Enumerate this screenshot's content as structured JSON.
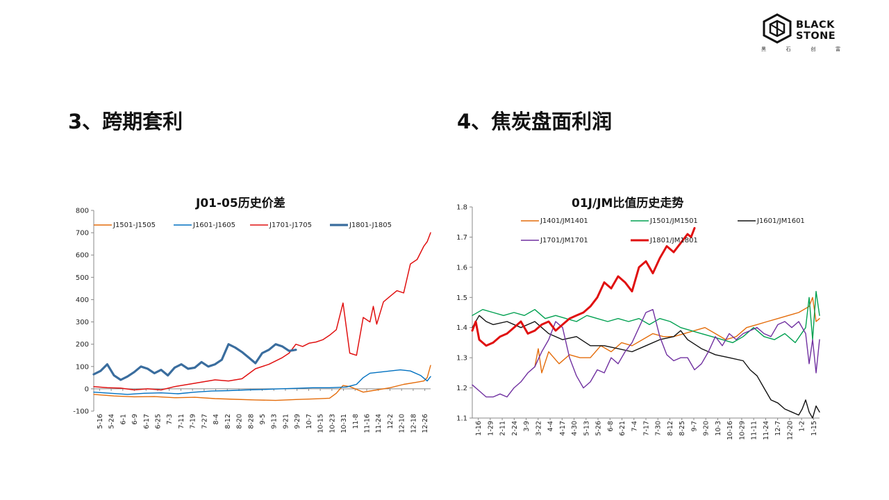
{
  "logo": {
    "line1": "BLACK",
    "line2": "STONE",
    "cn": [
      "黑",
      "石",
      "创",
      "富"
    ]
  },
  "sections": {
    "left": "3、跨期套利",
    "right": "4、焦炭盘面利润"
  },
  "chart_data": [
    {
      "type": "line",
      "title": "J01-05历史价差",
      "ylim": [
        -100,
        800
      ],
      "yticks": [
        -100,
        0,
        100,
        200,
        300,
        400,
        500,
        600,
        700,
        800
      ],
      "xlim": [
        0,
        1
      ],
      "categories": [
        "5-16",
        "5-24",
        "6-1",
        "6-9",
        "6-17",
        "6-25",
        "7-3",
        "7-11",
        "7-19",
        "7-27",
        "8-4",
        "8-12",
        "8-20",
        "8-28",
        "9-5",
        "9-13",
        "9-21",
        "9-29",
        "10-7",
        "10-15",
        "10-23",
        "10-31",
        "11-8",
        "11-16",
        "11-24",
        "12-2",
        "12-10",
        "12-18",
        "12-26"
      ],
      "legend_position": "top",
      "grid": false,
      "series": [
        {
          "name": "J1501-J1505",
          "color": "#E46C0A",
          "width": 1.4,
          "x": [
            0.0,
            0.06,
            0.12,
            0.18,
            0.24,
            0.3,
            0.36,
            0.42,
            0.48,
            0.54,
            0.6,
            0.66,
            0.7,
            0.72,
            0.74,
            0.76,
            0.8,
            0.84,
            0.88,
            0.92,
            0.96,
            0.98,
            0.99,
            1.0
          ],
          "values": [
            -25,
            -32,
            -36,
            -35,
            -40,
            -38,
            -44,
            -47,
            -50,
            -52,
            -48,
            -45,
            -42,
            -20,
            15,
            10,
            -15,
            -5,
            5,
            20,
            30,
            35,
            50,
            105
          ]
        },
        {
          "name": "J1601-J1605",
          "color": "#0070C0",
          "width": 1.4,
          "x": [
            0.0,
            0.05,
            0.1,
            0.15,
            0.2,
            0.25,
            0.3,
            0.35,
            0.4,
            0.45,
            0.5,
            0.55,
            0.6,
            0.65,
            0.7,
            0.75,
            0.78,
            0.8,
            0.82,
            0.85,
            0.88,
            0.91,
            0.94,
            0.97,
            0.99,
            1.0
          ],
          "values": [
            -15,
            -20,
            -25,
            -20,
            -18,
            -22,
            -15,
            -10,
            -8,
            -5,
            -3,
            0,
            2,
            5,
            5,
            8,
            20,
            50,
            70,
            75,
            80,
            85,
            80,
            60,
            35,
            55
          ]
        },
        {
          "name": "J1701-J1705",
          "color": "#E01010",
          "width": 1.5,
          "x": [
            0.0,
            0.04,
            0.08,
            0.12,
            0.16,
            0.2,
            0.24,
            0.28,
            0.32,
            0.36,
            0.4,
            0.44,
            0.48,
            0.52,
            0.56,
            0.58,
            0.6,
            0.62,
            0.64,
            0.66,
            0.68,
            0.7,
            0.72,
            0.74,
            0.76,
            0.78,
            0.8,
            0.82,
            0.83,
            0.84,
            0.86,
            0.88,
            0.9,
            0.92,
            0.94,
            0.96,
            0.98,
            0.99,
            1.0
          ],
          "values": [
            10,
            5,
            3,
            -5,
            0,
            -5,
            10,
            20,
            30,
            40,
            35,
            45,
            90,
            110,
            140,
            160,
            200,
            190,
            205,
            210,
            220,
            240,
            265,
            385,
            160,
            150,
            320,
            300,
            370,
            290,
            390,
            415,
            440,
            430,
            560,
            580,
            640,
            660,
            700
          ]
        },
        {
          "name": "J1801-J1805",
          "color": "#3A6D9E",
          "width": 3.2,
          "x": [
            0.0,
            0.02,
            0.04,
            0.06,
            0.08,
            0.1,
            0.12,
            0.14,
            0.16,
            0.18,
            0.2,
            0.22,
            0.24,
            0.26,
            0.28,
            0.3,
            0.32,
            0.34,
            0.36,
            0.38,
            0.4,
            0.42,
            0.44,
            0.46,
            0.48,
            0.5,
            0.52,
            0.54,
            0.56,
            0.58,
            0.6
          ],
          "values": [
            65,
            80,
            110,
            60,
            40,
            55,
            75,
            100,
            90,
            70,
            85,
            60,
            95,
            110,
            90,
            95,
            120,
            100,
            110,
            130,
            200,
            185,
            165,
            140,
            115,
            160,
            175,
            200,
            190,
            170,
            175
          ]
        }
      ]
    },
    {
      "type": "line",
      "title": "01J/JM比值历史走势",
      "ylim": [
        1.1,
        1.8
      ],
      "yticks": [
        1.1,
        1.2,
        1.3,
        1.4,
        1.5,
        1.6,
        1.7,
        1.8
      ],
      "xlim": [
        0,
        1
      ],
      "categories": [
        "1-16",
        "1-29",
        "2-11",
        "2-24",
        "3-9",
        "3-22",
        "4-4",
        "4-17",
        "4-30",
        "5-13",
        "5-26",
        "6-8",
        "6-21",
        "7-4",
        "7-17",
        "7-30",
        "8-12",
        "8-25",
        "9-7",
        "9-20",
        "10-3",
        "10-16",
        "10-29",
        "11-11",
        "11-24",
        "12-7",
        "12-20",
        "1-2",
        "1-15"
      ],
      "legend_position": "top",
      "grid": false,
      "series": [
        {
          "name": "J1401/JM1401",
          "color": "#E46C0A",
          "width": 1.4,
          "x": [
            0.18,
            0.19,
            0.2,
            0.22,
            0.25,
            0.28,
            0.31,
            0.34,
            0.37,
            0.4,
            0.43,
            0.46,
            0.49,
            0.52,
            0.55,
            0.58,
            0.61,
            0.64,
            0.67,
            0.7,
            0.73,
            0.76,
            0.79,
            0.82,
            0.85,
            0.88,
            0.91,
            0.94,
            0.97,
            0.98,
            0.99,
            1.0
          ],
          "values": [
            1.27,
            1.33,
            1.25,
            1.32,
            1.28,
            1.31,
            1.3,
            1.3,
            1.34,
            1.32,
            1.35,
            1.34,
            1.36,
            1.38,
            1.37,
            1.37,
            1.38,
            1.39,
            1.4,
            1.38,
            1.36,
            1.37,
            1.4,
            1.41,
            1.42,
            1.43,
            1.44,
            1.45,
            1.47,
            1.5,
            1.42,
            1.43
          ]
        },
        {
          "name": "J1501/JM1501",
          "color": "#00A050",
          "width": 1.4,
          "x": [
            0.0,
            0.03,
            0.06,
            0.09,
            0.12,
            0.15,
            0.18,
            0.21,
            0.24,
            0.27,
            0.3,
            0.33,
            0.36,
            0.39,
            0.42,
            0.45,
            0.48,
            0.51,
            0.54,
            0.57,
            0.6,
            0.63,
            0.66,
            0.69,
            0.72,
            0.75,
            0.78,
            0.81,
            0.84,
            0.87,
            0.9,
            0.93,
            0.96,
            0.97,
            0.98,
            0.99,
            1.0
          ],
          "values": [
            1.44,
            1.46,
            1.45,
            1.44,
            1.45,
            1.44,
            1.46,
            1.43,
            1.44,
            1.43,
            1.42,
            1.44,
            1.43,
            1.42,
            1.43,
            1.42,
            1.43,
            1.41,
            1.43,
            1.42,
            1.4,
            1.39,
            1.38,
            1.37,
            1.36,
            1.35,
            1.37,
            1.4,
            1.37,
            1.36,
            1.38,
            1.35,
            1.4,
            1.5,
            1.36,
            1.52,
            1.44
          ]
        },
        {
          "name": "J1601/JM1601",
          "color": "#111111",
          "width": 1.4,
          "x": [
            0.0,
            0.02,
            0.04,
            0.06,
            0.1,
            0.14,
            0.18,
            0.2,
            0.22,
            0.26,
            0.3,
            0.34,
            0.38,
            0.42,
            0.46,
            0.5,
            0.54,
            0.58,
            0.6,
            0.62,
            0.66,
            0.7,
            0.74,
            0.78,
            0.8,
            0.82,
            0.84,
            0.86,
            0.88,
            0.9,
            0.92,
            0.94,
            0.95,
            0.96,
            0.97,
            0.98,
            0.99,
            1.0
          ],
          "values": [
            1.4,
            1.44,
            1.42,
            1.41,
            1.42,
            1.4,
            1.42,
            1.4,
            1.38,
            1.36,
            1.37,
            1.34,
            1.34,
            1.33,
            1.32,
            1.34,
            1.36,
            1.37,
            1.39,
            1.36,
            1.33,
            1.31,
            1.3,
            1.29,
            1.26,
            1.24,
            1.2,
            1.16,
            1.15,
            1.13,
            1.12,
            1.11,
            1.13,
            1.16,
            1.12,
            1.1,
            1.14,
            1.12
          ]
        },
        {
          "name": "J1701/JM1701",
          "color": "#7030A0",
          "width": 1.4,
          "x": [
            0.0,
            0.02,
            0.04,
            0.06,
            0.08,
            0.1,
            0.12,
            0.14,
            0.16,
            0.18,
            0.2,
            0.22,
            0.24,
            0.26,
            0.28,
            0.3,
            0.32,
            0.34,
            0.36,
            0.38,
            0.4,
            0.42,
            0.44,
            0.46,
            0.48,
            0.5,
            0.52,
            0.54,
            0.56,
            0.58,
            0.6,
            0.62,
            0.64,
            0.66,
            0.68,
            0.7,
            0.72,
            0.74,
            0.76,
            0.78,
            0.8,
            0.82,
            0.84,
            0.86,
            0.88,
            0.9,
            0.92,
            0.94,
            0.96,
            0.97,
            0.98,
            0.99,
            1.0
          ],
          "values": [
            1.21,
            1.19,
            1.17,
            1.17,
            1.18,
            1.17,
            1.2,
            1.22,
            1.25,
            1.27,
            1.32,
            1.36,
            1.42,
            1.4,
            1.3,
            1.24,
            1.2,
            1.22,
            1.26,
            1.25,
            1.3,
            1.28,
            1.32,
            1.35,
            1.4,
            1.45,
            1.46,
            1.37,
            1.31,
            1.29,
            1.3,
            1.3,
            1.26,
            1.28,
            1.32,
            1.37,
            1.34,
            1.38,
            1.36,
            1.38,
            1.39,
            1.4,
            1.38,
            1.37,
            1.41,
            1.42,
            1.4,
            1.42,
            1.38,
            1.28,
            1.36,
            1.25,
            1.36
          ]
        },
        {
          "name": "J1801/JM1801",
          "color": "#E01010",
          "width": 3.0,
          "x": [
            0.0,
            0.01,
            0.02,
            0.04,
            0.06,
            0.08,
            0.1,
            0.12,
            0.14,
            0.16,
            0.18,
            0.2,
            0.22,
            0.24,
            0.26,
            0.28,
            0.3,
            0.32,
            0.34,
            0.36,
            0.38,
            0.4,
            0.42,
            0.44,
            0.46,
            0.48,
            0.5,
            0.52,
            0.54,
            0.56,
            0.58,
            0.6,
            0.62,
            0.63,
            0.64
          ],
          "values": [
            1.39,
            1.42,
            1.36,
            1.34,
            1.35,
            1.37,
            1.38,
            1.4,
            1.42,
            1.38,
            1.39,
            1.41,
            1.42,
            1.39,
            1.41,
            1.43,
            1.44,
            1.45,
            1.47,
            1.5,
            1.55,
            1.53,
            1.57,
            1.55,
            1.52,
            1.6,
            1.62,
            1.58,
            1.63,
            1.67,
            1.65,
            1.68,
            1.71,
            1.7,
            1.73
          ]
        }
      ]
    }
  ]
}
